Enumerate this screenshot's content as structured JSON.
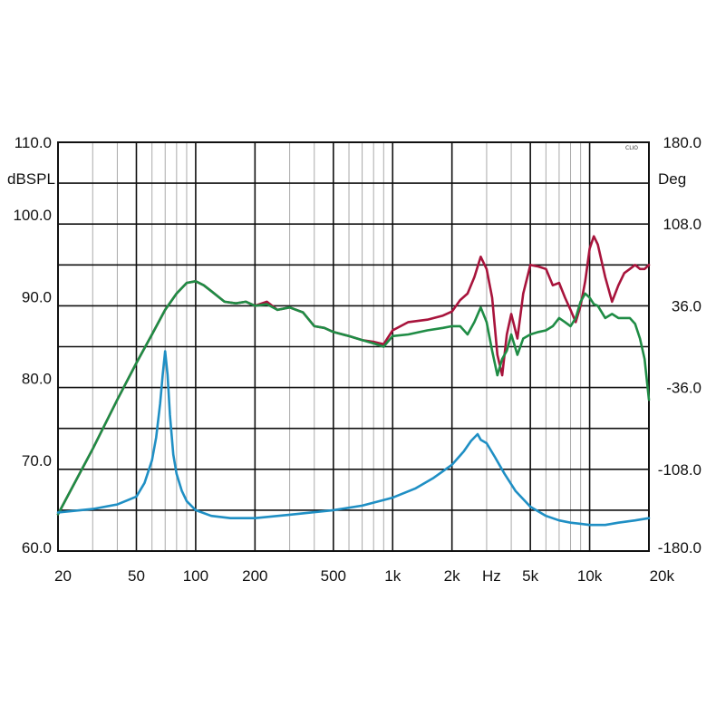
{
  "chart_data": {
    "type": "line",
    "brand": "CLIO",
    "xscale": "log",
    "xlim": [
      20,
      20000
    ],
    "x_tick_labels": [
      {
        "value": 20,
        "label": "20"
      },
      {
        "value": 50,
        "label": "50"
      },
      {
        "value": 100,
        "label": "100"
      },
      {
        "value": 200,
        "label": "200"
      },
      {
        "value": 500,
        "label": "500"
      },
      {
        "value": 1000,
        "label": "1k"
      },
      {
        "value": 2000,
        "label": "2k"
      },
      {
        "value": 5000,
        "label": "5k"
      },
      {
        "value": 10000,
        "label": "10k"
      },
      {
        "value": 20000,
        "label": "20k"
      }
    ],
    "xunit": "Hz",
    "y_left": {
      "unit": "dBSPL",
      "lim": [
        60,
        110
      ],
      "ticks": [
        "110.0",
        "100.0",
        "90.0",
        "80.0",
        "70.0",
        "60.0"
      ]
    },
    "y_right": {
      "unit": "Deg",
      "lim": [
        -180,
        180
      ],
      "ticks": [
        "180.0",
        "108.0",
        "36.0",
        "-36.0",
        "-108.0",
        "-180.0"
      ]
    },
    "grid": true,
    "colors": {
      "red": "#a8143c",
      "green": "#1f8c45",
      "blue": "#1f8fc4",
      "grid": "#111111",
      "minor_grid": "#aaaaaa"
    },
    "series": [
      {
        "color": "#a8143c",
        "axis": "left",
        "x": [
          20,
          30,
          40,
          50,
          60,
          70,
          80,
          90,
          100,
          110,
          120,
          140,
          160,
          180,
          200,
          230,
          260,
          300,
          350,
          400,
          450,
          500,
          600,
          700,
          800,
          900,
          1000,
          1200,
          1500,
          1800,
          2000,
          2200,
          2400,
          2600,
          2800,
          3000,
          3200,
          3400,
          3600,
          3800,
          4000,
          4300,
          4600,
          5000,
          5500,
          6000,
          6500,
          7000,
          7500,
          8000,
          8500,
          9000,
          9500,
          10000,
          10500,
          11000,
          12000,
          13000,
          14000,
          15000,
          16000,
          17000,
          18000,
          19000,
          20000
        ],
        "y": [
          64.5,
          72.5,
          78.5,
          83,
          86.5,
          89.5,
          91.5,
          92.8,
          93,
          92.5,
          91.8,
          90.5,
          90.3,
          90.5,
          90,
          90.5,
          89.5,
          89.8,
          89.2,
          87.5,
          87.3,
          86.8,
          86.3,
          85.8,
          85.6,
          85.3,
          87,
          88,
          88.3,
          88.8,
          89.3,
          90.7,
          91.5,
          93.5,
          96,
          94.5,
          91,
          84,
          81.5,
          86.5,
          89,
          86,
          91.5,
          95,
          94.8,
          94.5,
          92.5,
          92.8,
          91,
          89.5,
          88,
          90,
          93,
          97,
          98.5,
          97.5,
          93.5,
          90.5,
          92.5,
          94,
          94.5,
          95,
          94.5,
          94.5,
          95
        ]
      },
      {
        "color": "#1f8c45",
        "axis": "left",
        "x": [
          20,
          30,
          40,
          50,
          60,
          70,
          80,
          90,
          100,
          110,
          120,
          140,
          160,
          180,
          200,
          230,
          260,
          300,
          350,
          400,
          450,
          500,
          600,
          700,
          800,
          900,
          1000,
          1200,
          1500,
          1800,
          2000,
          2200,
          2400,
          2600,
          2800,
          3000,
          3200,
          3400,
          3600,
          3800,
          4000,
          4300,
          4600,
          5000,
          5500,
          6000,
          6500,
          7000,
          7500,
          8000,
          8500,
          9000,
          9500,
          10000,
          10500,
          11000,
          12000,
          13000,
          14000,
          15000,
          16000,
          17000,
          18000,
          19000,
          20000
        ],
        "y": [
          64.5,
          72.5,
          78.5,
          83,
          86.5,
          89.5,
          91.5,
          92.8,
          93,
          92.5,
          91.8,
          90.5,
          90.3,
          90.5,
          90,
          90.2,
          89.5,
          89.8,
          89.2,
          87.5,
          87.3,
          86.8,
          86.3,
          85.8,
          85.4,
          85,
          86.3,
          86.5,
          87,
          87.3,
          87.5,
          87.5,
          86.5,
          88,
          89.8,
          88,
          84.5,
          81.5,
          83.5,
          84.5,
          86.5,
          84,
          86,
          86.5,
          86.8,
          87,
          87.5,
          88.5,
          88,
          87.5,
          88.5,
          90.5,
          91.5,
          91,
          90.2,
          90,
          88.5,
          89,
          88.5,
          88.5,
          88.5,
          87.8,
          86,
          83.5,
          78.5
        ]
      },
      {
        "color": "#1f8fc4",
        "axis": "right",
        "x": [
          20,
          30,
          40,
          50,
          55,
          60,
          63,
          66,
          68,
          70,
          72,
          74,
          77,
          80,
          85,
          90,
          100,
          120,
          150,
          200,
          300,
          500,
          700,
          1000,
          1300,
          1600,
          2000,
          2300,
          2500,
          2700,
          2800,
          3000,
          3300,
          3700,
          4200,
          5000,
          6000,
          7000,
          8000,
          9000,
          10000,
          12000,
          14000,
          17000,
          20000
        ],
        "y": [
          -146,
          -143,
          -139,
          -132,
          -120,
          -100,
          -80,
          -50,
          -25,
          -4,
          -25,
          -60,
          -95,
          -112,
          -127,
          -136,
          -144,
          -149,
          -151,
          -151,
          -148,
          -144,
          -140,
          -133,
          -125,
          -116,
          -104,
          -92,
          -83,
          -77,
          -82,
          -85,
          -97,
          -112,
          -127,
          -141,
          -149,
          -153,
          -155,
          -156,
          -157,
          -157,
          -155,
          -153,
          -151
        ]
      }
    ]
  }
}
